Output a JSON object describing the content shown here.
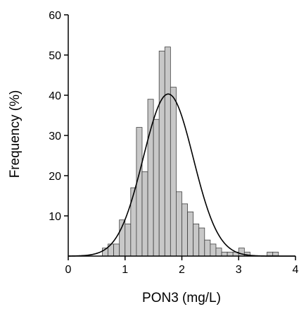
{
  "chart_data": {
    "type": "bar",
    "title": "",
    "xlabel": "PON3 (mg/L)",
    "ylabel": "Frequency (%)",
    "xlim": [
      0,
      4
    ],
    "ylim": [
      0,
      60
    ],
    "x_ticks": [
      {
        "value": 0,
        "label": "0"
      },
      {
        "value": 1,
        "label": "1"
      },
      {
        "value": 2,
        "label": "2"
      },
      {
        "value": 3,
        "label": "3"
      },
      {
        "value": 4,
        "label": "4"
      }
    ],
    "y_ticks": [
      {
        "value": 10,
        "label": "10"
      },
      {
        "value": 20,
        "label": "20"
      },
      {
        "value": 30,
        "label": "30"
      },
      {
        "value": 40,
        "label": "40"
      },
      {
        "value": 50,
        "label": "50"
      },
      {
        "value": 60,
        "label": "60"
      }
    ],
    "bin_width": 0.1,
    "bin_starts": [
      0.5,
      0.6,
      0.7,
      0.8,
      0.9,
      1.0,
      1.1,
      1.2,
      1.3,
      1.4,
      1.5,
      1.6,
      1.7,
      1.8,
      1.9,
      2.0,
      2.1,
      2.2,
      2.3,
      2.4,
      2.5,
      2.6,
      2.7,
      2.8,
      2.9,
      3.0,
      3.1,
      3.2,
      3.3,
      3.4,
      3.5,
      3.6,
      3.7
    ],
    "values": [
      0,
      2,
      3,
      3,
      9,
      8,
      17,
      32,
      21,
      39,
      34,
      51,
      52,
      42,
      16,
      13,
      11,
      8,
      7,
      4,
      3,
      2,
      1,
      1,
      1,
      2,
      1,
      0,
      0,
      0,
      1,
      1,
      0
    ],
    "normal_curve": {
      "mean": 1.76,
      "sd": 0.44,
      "peak": 40.3
    },
    "grid": false,
    "bar_color": "#c8c8c8",
    "bar_stroke": "#404040",
    "curve_color": "#000000"
  }
}
